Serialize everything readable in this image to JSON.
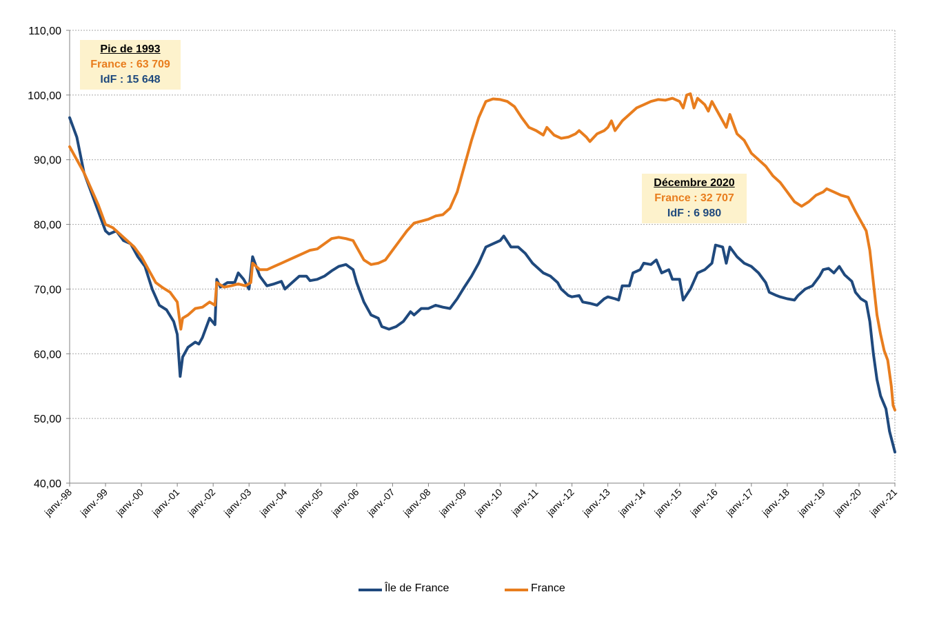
{
  "chart_data": {
    "type": "line",
    "title": "",
    "xlabel": "",
    "ylabel": "",
    "ylim": [
      40,
      110
    ],
    "yticks": [
      "40,00",
      "50,00",
      "60,00",
      "70,00",
      "80,00",
      "90,00",
      "100,00",
      "110,00"
    ],
    "xticks": [
      "janv.-98",
      "janv.-99",
      "janv.-00",
      "janv.-01",
      "janv.-02",
      "janv.-03",
      "janv.-04",
      "janv.-05",
      "janv.-06",
      "janv.-07",
      "janv.-08",
      "janv.-09",
      "janv.-10",
      "janv.-11",
      "janv.-12",
      "janv.-13",
      "janv.-14",
      "janv.-15",
      "janv.-16",
      "janv.-17",
      "janv.-18",
      "janv.-19",
      "janv.-20",
      "janv.-21"
    ],
    "grid": true,
    "legend": "bottom",
    "series": [
      {
        "name": "Île de France",
        "color": "#1f497d",
        "points": [
          [
            1998.0,
            96.5
          ],
          [
            1998.2,
            93.5
          ],
          [
            1998.4,
            88
          ],
          [
            1998.6,
            85
          ],
          [
            1998.8,
            82
          ],
          [
            1999.0,
            79
          ],
          [
            1999.1,
            78.5
          ],
          [
            1999.3,
            79
          ],
          [
            1999.5,
            77.5
          ],
          [
            1999.7,
            77
          ],
          [
            1999.9,
            75
          ],
          [
            2000.1,
            73.5
          ],
          [
            2000.3,
            70
          ],
          [
            2000.5,
            67.5
          ],
          [
            2000.7,
            66.8
          ],
          [
            2000.9,
            65
          ],
          [
            2001.0,
            63
          ],
          [
            2001.08,
            56.5
          ],
          [
            2001.15,
            59.5
          ],
          [
            2001.3,
            61
          ],
          [
            2001.5,
            61.8
          ],
          [
            2001.6,
            61.5
          ],
          [
            2001.7,
            62.5
          ],
          [
            2001.9,
            65.5
          ],
          [
            2002.05,
            64.5
          ],
          [
            2002.1,
            71.5
          ],
          [
            2002.2,
            70.3
          ],
          [
            2002.4,
            71
          ],
          [
            2002.6,
            71
          ],
          [
            2002.7,
            72.5
          ],
          [
            2002.85,
            71.5
          ],
          [
            2003.0,
            70
          ],
          [
            2003.1,
            75
          ],
          [
            2003.3,
            72
          ],
          [
            2003.5,
            70.5
          ],
          [
            2003.7,
            70.8
          ],
          [
            2003.9,
            71.2
          ],
          [
            2004.0,
            70
          ],
          [
            2004.2,
            71
          ],
          [
            2004.4,
            72
          ],
          [
            2004.6,
            72
          ],
          [
            2004.7,
            71.3
          ],
          [
            2004.9,
            71.5
          ],
          [
            2005.1,
            72
          ],
          [
            2005.3,
            72.8
          ],
          [
            2005.5,
            73.5
          ],
          [
            2005.7,
            73.8
          ],
          [
            2005.9,
            73
          ],
          [
            2006.0,
            71
          ],
          [
            2006.2,
            68
          ],
          [
            2006.4,
            66
          ],
          [
            2006.6,
            65.5
          ],
          [
            2006.7,
            64.2
          ],
          [
            2006.9,
            63.8
          ],
          [
            2007.1,
            64.2
          ],
          [
            2007.3,
            65
          ],
          [
            2007.5,
            66.5
          ],
          [
            2007.6,
            66
          ],
          [
            2007.8,
            67
          ],
          [
            2008.0,
            67
          ],
          [
            2008.2,
            67.5
          ],
          [
            2008.4,
            67.2
          ],
          [
            2008.6,
            67
          ],
          [
            2008.8,
            68.5
          ],
          [
            2009.0,
            70.3
          ],
          [
            2009.2,
            72
          ],
          [
            2009.4,
            74
          ],
          [
            2009.6,
            76.5
          ],
          [
            2009.8,
            77
          ],
          [
            2010.0,
            77.5
          ],
          [
            2010.1,
            78.2
          ],
          [
            2010.3,
            76.5
          ],
          [
            2010.5,
            76.5
          ],
          [
            2010.7,
            75.5
          ],
          [
            2010.9,
            74
          ],
          [
            2011.0,
            73.5
          ],
          [
            2011.2,
            72.5
          ],
          [
            2011.4,
            72
          ],
          [
            2011.6,
            71
          ],
          [
            2011.7,
            70
          ],
          [
            2011.9,
            69
          ],
          [
            2012.0,
            68.8
          ],
          [
            2012.2,
            69
          ],
          [
            2012.3,
            68
          ],
          [
            2012.5,
            67.8
          ],
          [
            2012.7,
            67.5
          ],
          [
            2012.9,
            68.5
          ],
          [
            2013.0,
            68.8
          ],
          [
            2013.2,
            68.5
          ],
          [
            2013.3,
            68.3
          ],
          [
            2013.4,
            70.5
          ],
          [
            2013.6,
            70.5
          ],
          [
            2013.7,
            72.5
          ],
          [
            2013.9,
            73
          ],
          [
            2014.0,
            74
          ],
          [
            2014.2,
            73.8
          ],
          [
            2014.35,
            74.5
          ],
          [
            2014.5,
            72.5
          ],
          [
            2014.7,
            73
          ],
          [
            2014.8,
            71.5
          ],
          [
            2015.0,
            71.5
          ],
          [
            2015.1,
            68.3
          ],
          [
            2015.3,
            70
          ],
          [
            2015.5,
            72.5
          ],
          [
            2015.7,
            73
          ],
          [
            2015.9,
            74
          ],
          [
            2016.0,
            76.8
          ],
          [
            2016.2,
            76.5
          ],
          [
            2016.3,
            74
          ],
          [
            2016.4,
            76.5
          ],
          [
            2016.6,
            75
          ],
          [
            2016.8,
            74
          ],
          [
            2017.0,
            73.5
          ],
          [
            2017.2,
            72.5
          ],
          [
            2017.4,
            71
          ],
          [
            2017.5,
            69.5
          ],
          [
            2017.7,
            69
          ],
          [
            2017.8,
            68.8
          ],
          [
            2018.0,
            68.5
          ],
          [
            2018.2,
            68.3
          ],
          [
            2018.3,
            69
          ],
          [
            2018.5,
            70
          ],
          [
            2018.7,
            70.5
          ],
          [
            2018.9,
            72
          ],
          [
            2019.0,
            73
          ],
          [
            2019.15,
            73.2
          ],
          [
            2019.3,
            72.5
          ],
          [
            2019.45,
            73.5
          ],
          [
            2019.6,
            72.2
          ],
          [
            2019.8,
            71.2
          ],
          [
            2019.9,
            69.5
          ],
          [
            2020.05,
            68.5
          ],
          [
            2020.2,
            68
          ],
          [
            2020.3,
            65
          ],
          [
            2020.4,
            60
          ],
          [
            2020.5,
            56
          ],
          [
            2020.6,
            53.5
          ],
          [
            2020.75,
            51.5
          ],
          [
            2020.85,
            48
          ],
          [
            2021.0,
            44.8
          ]
        ]
      },
      {
        "name": "France",
        "color": "#e87d1e",
        "points": [
          [
            1998.0,
            92
          ],
          [
            1998.2,
            90
          ],
          [
            1998.4,
            88
          ],
          [
            1998.6,
            85.5
          ],
          [
            1998.8,
            83
          ],
          [
            1999.0,
            80
          ],
          [
            1999.2,
            79.5
          ],
          [
            1999.4,
            78.5
          ],
          [
            1999.6,
            77.5
          ],
          [
            1999.8,
            76.5
          ],
          [
            2000.0,
            75
          ],
          [
            2000.2,
            73
          ],
          [
            2000.4,
            71
          ],
          [
            2000.6,
            70.2
          ],
          [
            2000.8,
            69.5
          ],
          [
            2001.0,
            68
          ],
          [
            2001.1,
            63.8
          ],
          [
            2001.15,
            65.5
          ],
          [
            2001.3,
            66
          ],
          [
            2001.5,
            67
          ],
          [
            2001.7,
            67.2
          ],
          [
            2001.9,
            68
          ],
          [
            2002.05,
            67.5
          ],
          [
            2002.1,
            71
          ],
          [
            2002.3,
            70.3
          ],
          [
            2002.5,
            70.5
          ],
          [
            2002.7,
            70.8
          ],
          [
            2002.9,
            70.5
          ],
          [
            2003.05,
            71
          ],
          [
            2003.1,
            74
          ],
          [
            2003.3,
            73
          ],
          [
            2003.5,
            73
          ],
          [
            2003.7,
            73.5
          ],
          [
            2003.9,
            74
          ],
          [
            2004.1,
            74.5
          ],
          [
            2004.3,
            75
          ],
          [
            2004.5,
            75.5
          ],
          [
            2004.7,
            76
          ],
          [
            2004.9,
            76.2
          ],
          [
            2005.1,
            77
          ],
          [
            2005.3,
            77.8
          ],
          [
            2005.5,
            78
          ],
          [
            2005.7,
            77.8
          ],
          [
            2005.9,
            77.5
          ],
          [
            2006.0,
            76.5
          ],
          [
            2006.2,
            74.5
          ],
          [
            2006.4,
            73.8
          ],
          [
            2006.6,
            74
          ],
          [
            2006.8,
            74.5
          ],
          [
            2007.0,
            76
          ],
          [
            2007.2,
            77.5
          ],
          [
            2007.4,
            79
          ],
          [
            2007.6,
            80.2
          ],
          [
            2007.8,
            80.5
          ],
          [
            2008.0,
            80.8
          ],
          [
            2008.2,
            81.3
          ],
          [
            2008.4,
            81.5
          ],
          [
            2008.6,
            82.5
          ],
          [
            2008.8,
            85
          ],
          [
            2009.0,
            89
          ],
          [
            2009.2,
            93
          ],
          [
            2009.4,
            96.5
          ],
          [
            2009.6,
            99
          ],
          [
            2009.8,
            99.4
          ],
          [
            2010.0,
            99.3
          ],
          [
            2010.2,
            99
          ],
          [
            2010.4,
            98.2
          ],
          [
            2010.6,
            96.5
          ],
          [
            2010.8,
            95
          ],
          [
            2011.0,
            94.5
          ],
          [
            2011.2,
            93.8
          ],
          [
            2011.3,
            95
          ],
          [
            2011.5,
            93.8
          ],
          [
            2011.7,
            93.3
          ],
          [
            2011.9,
            93.5
          ],
          [
            2012.1,
            94
          ],
          [
            2012.2,
            94.5
          ],
          [
            2012.4,
            93.5
          ],
          [
            2012.5,
            92.8
          ],
          [
            2012.7,
            94
          ],
          [
            2012.9,
            94.5
          ],
          [
            2013.0,
            95
          ],
          [
            2013.1,
            96
          ],
          [
            2013.2,
            94.5
          ],
          [
            2013.4,
            96
          ],
          [
            2013.6,
            97
          ],
          [
            2013.8,
            98
          ],
          [
            2014.0,
            98.5
          ],
          [
            2014.2,
            99
          ],
          [
            2014.4,
            99.3
          ],
          [
            2014.6,
            99.2
          ],
          [
            2014.8,
            99.5
          ],
          [
            2015.0,
            99
          ],
          [
            2015.1,
            98
          ],
          [
            2015.2,
            100
          ],
          [
            2015.3,
            100.2
          ],
          [
            2015.4,
            98
          ],
          [
            2015.5,
            99.5
          ],
          [
            2015.7,
            98.5
          ],
          [
            2015.8,
            97.5
          ],
          [
            2015.9,
            99
          ],
          [
            2016.0,
            98
          ],
          [
            2016.2,
            96
          ],
          [
            2016.3,
            95
          ],
          [
            2016.4,
            97
          ],
          [
            2016.6,
            94
          ],
          [
            2016.8,
            93
          ],
          [
            2017.0,
            91
          ],
          [
            2017.2,
            90
          ],
          [
            2017.4,
            89
          ],
          [
            2017.6,
            87.5
          ],
          [
            2017.8,
            86.5
          ],
          [
            2018.0,
            85
          ],
          [
            2018.2,
            83.5
          ],
          [
            2018.4,
            82.8
          ],
          [
            2018.6,
            83.5
          ],
          [
            2018.8,
            84.5
          ],
          [
            2019.0,
            85
          ],
          [
            2019.1,
            85.5
          ],
          [
            2019.3,
            85
          ],
          [
            2019.5,
            84.5
          ],
          [
            2019.7,
            84.2
          ],
          [
            2019.9,
            82
          ],
          [
            2020.0,
            81
          ],
          [
            2020.2,
            79
          ],
          [
            2020.3,
            76
          ],
          [
            2020.4,
            71
          ],
          [
            2020.5,
            66
          ],
          [
            2020.6,
            63
          ],
          [
            2020.7,
            60.5
          ],
          [
            2020.8,
            59
          ],
          [
            2020.9,
            55
          ],
          [
            2020.95,
            52
          ],
          [
            2021.0,
            51.3
          ]
        ]
      }
    ]
  },
  "annotations": {
    "peak": {
      "title": "Pic de 1993",
      "france": "France : 63 709",
      "idf": "IdF : 15 648"
    },
    "dec2020": {
      "title": "Décembre 2020",
      "france": "France : 32 707",
      "idf": "IdF : 6 980"
    }
  },
  "legend_items": [
    "Île de France",
    "France"
  ]
}
